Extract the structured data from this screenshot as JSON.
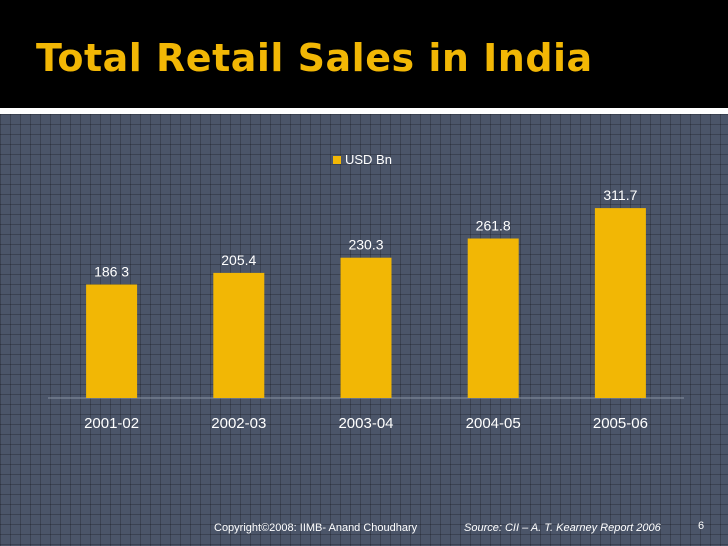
{
  "slide": {
    "title": "Total Retail Sales in India",
    "copyright": "Copyright©2008: IIMB- Anand Choudhary",
    "source": "Source: CII – A. T. Kearney Report 2006",
    "page_number": "6"
  },
  "colors": {
    "background": "#4b5569",
    "title_bar": "#000000",
    "title_text": "#f2b705",
    "bar": "#f2b705",
    "text": "#ffffff"
  },
  "chart_data": {
    "type": "bar",
    "title": "Total Retail Sales in India",
    "categories": [
      "2001-02",
      "2002-03",
      "2003-04",
      "2004-05",
      "2005-06"
    ],
    "series": [
      {
        "name": "USD Bn",
        "values": [
          186.3,
          205.4,
          230.3,
          261.8,
          311.7
        ],
        "labels": [
          "186 3",
          "205.4",
          "230.3",
          "261.8",
          "311.7"
        ]
      }
    ],
    "xlabel": "",
    "ylabel": "",
    "ylim": [
      0,
      400
    ],
    "legend": "top-center",
    "grid": false
  }
}
